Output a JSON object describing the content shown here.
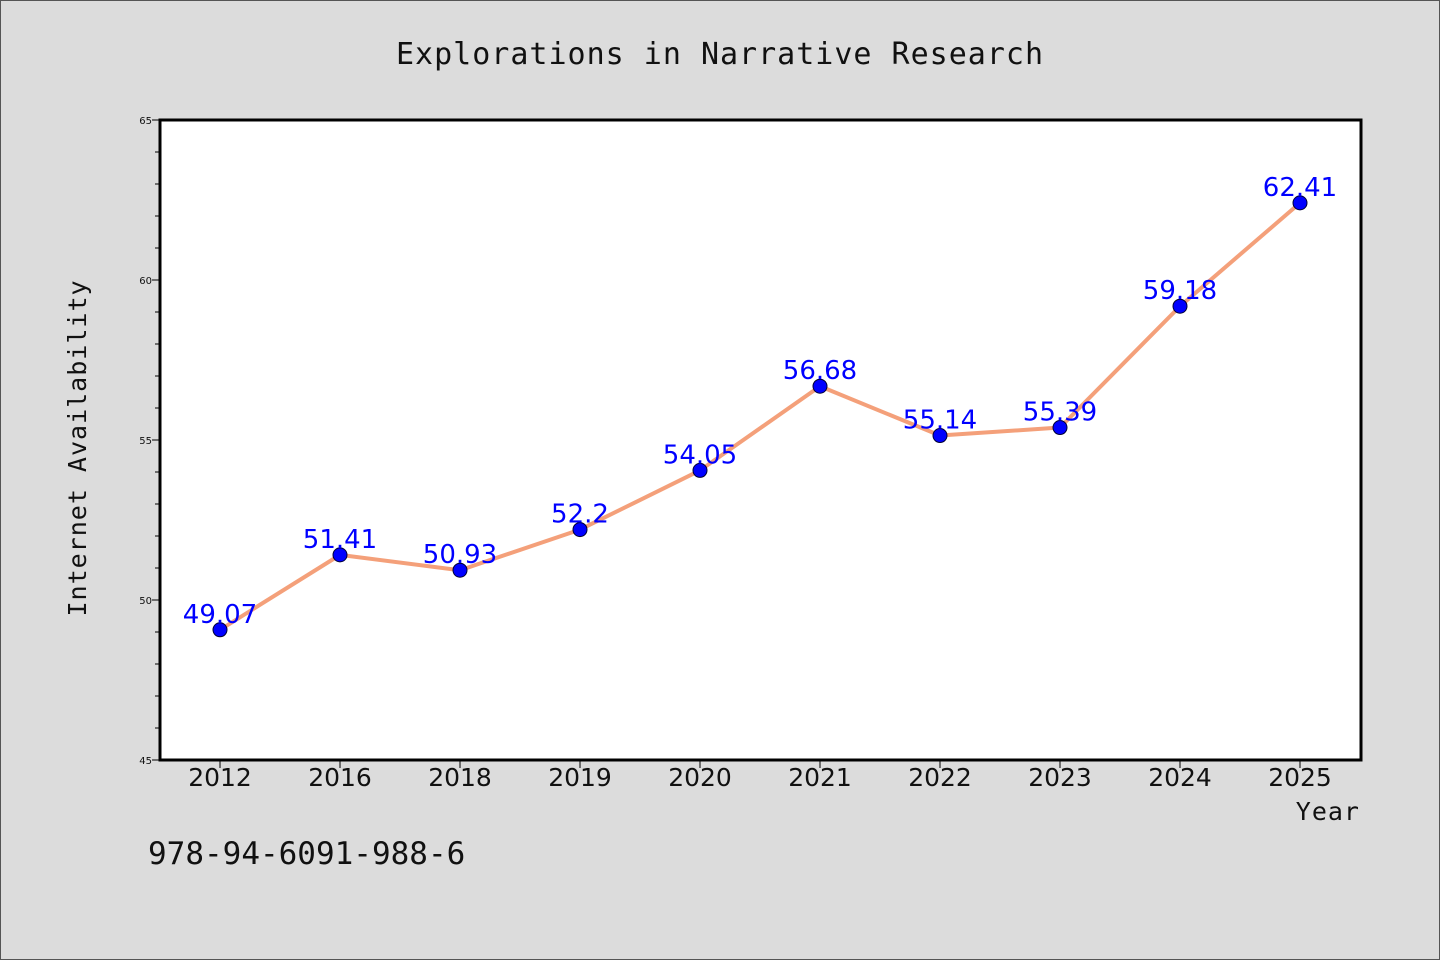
{
  "chart_data": {
    "type": "line",
    "title": "Explorations in Narrative Research",
    "xlabel": "Year",
    "ylabel": "Internet Availability",
    "categories": [
      "2012",
      "2016",
      "2018",
      "2019",
      "2020",
      "2021",
      "2022",
      "2023",
      "2024",
      "2025"
    ],
    "series": [
      {
        "values": [
          49.07,
          51.41,
          50.93,
          52.2,
          54.05,
          56.68,
          55.14,
          55.39,
          59.18,
          62.41
        ],
        "labels": [
          "49.07",
          "51.41",
          "50.93",
          "52.2",
          "54.05",
          "56.68",
          "55.14",
          "55.39",
          "59.18",
          "62.41"
        ],
        "line_color": "#f4a07a",
        "marker_color": "#0000ff"
      }
    ],
    "ylim": [
      45,
      65
    ],
    "yticks": [
      "45",
      "50",
      "55",
      "60",
      "65"
    ],
    "grid": false,
    "legend": "none"
  },
  "footer": {
    "isbn": "978-94-6091-988-6"
  },
  "colors": {
    "background": "#dcdcdc",
    "plot_background": "#ffffff",
    "line": "#f4a07a",
    "marker": "#0000ff",
    "data_label": "#0000ff"
  }
}
